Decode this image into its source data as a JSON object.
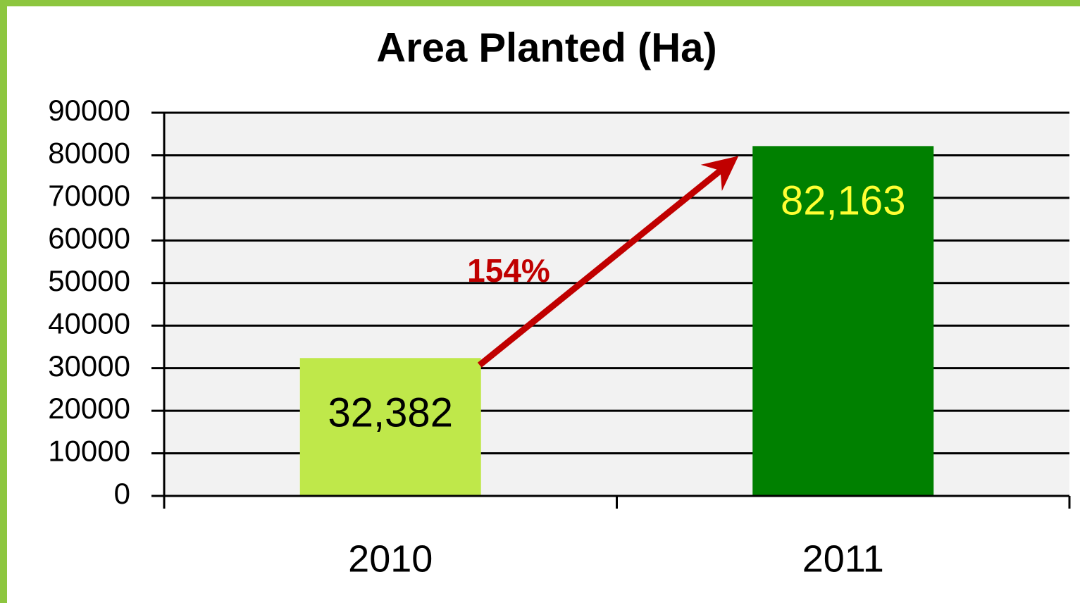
{
  "chart_data": {
    "type": "bar",
    "title": "Area Planted (Ha)",
    "categories": [
      "2010",
      "2011"
    ],
    "values": [
      32382,
      82163
    ],
    "value_labels": [
      "32,382",
      "82,163"
    ],
    "colors": [
      "#bfe84a",
      "#008000"
    ],
    "label_colors": [
      "#000000",
      "#ffff33"
    ],
    "annotation": "154%",
    "annotation_color": "#c00000",
    "ylim": [
      0,
      90000
    ],
    "yticks": [
      0,
      10000,
      20000,
      30000,
      40000,
      50000,
      60000,
      70000,
      80000,
      90000
    ],
    "grid": true
  }
}
